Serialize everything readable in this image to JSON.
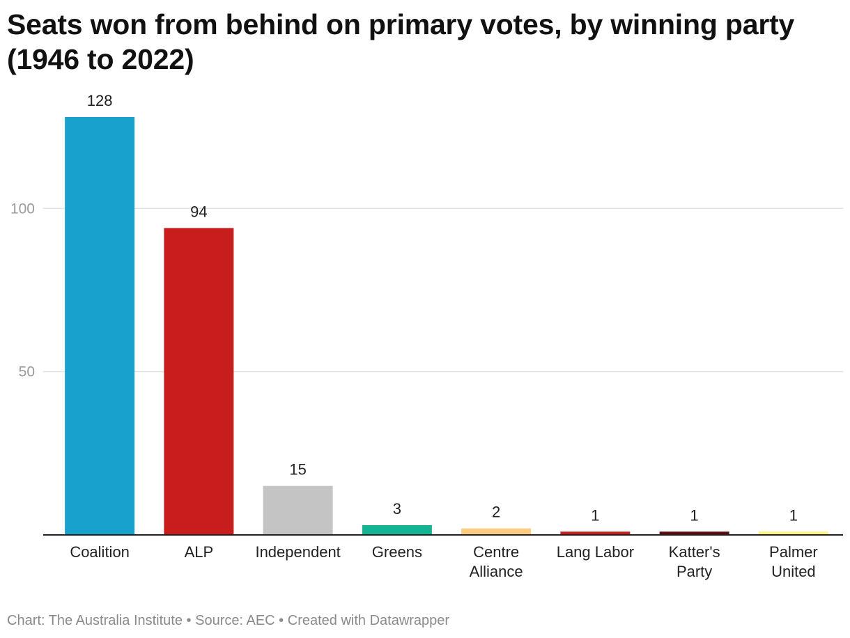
{
  "chart_data": {
    "type": "bar",
    "title": "Seats won from behind on primary votes, by winning party (1946 to 2022)",
    "categories": [
      "Coalition",
      "ALP",
      "Independent",
      "Greens",
      "Centre Alliance",
      "Lang Labor",
      "Katter's Party",
      "Palmer United"
    ],
    "category_lines": [
      [
        "Coalition"
      ],
      [
        "ALP"
      ],
      [
        "Independent"
      ],
      [
        "Greens"
      ],
      [
        "Centre",
        "Alliance"
      ],
      [
        "Lang Labor"
      ],
      [
        "Katter's",
        "Party"
      ],
      [
        "Palmer",
        "United"
      ]
    ],
    "values": [
      128,
      94,
      15,
      3,
      2,
      1,
      1,
      1
    ],
    "value_labels": [
      "128",
      "94",
      "15",
      "3",
      "2",
      "1",
      "1",
      "1"
    ],
    "colors": [
      "#18a1cd",
      "#c71e1d",
      "#c4c4c4",
      "#15b392",
      "#fecc80",
      "#c71e1d",
      "#5c0a0a",
      "#fdf280"
    ],
    "ylim": [
      0,
      128
    ],
    "yticks": [
      50,
      100
    ],
    "ytick_labels": [
      "50",
      "100"
    ],
    "grid": true,
    "legend": "none",
    "xlabel": "",
    "ylabel": ""
  },
  "footer": {
    "chart_credit": "Chart: The Australia Institute",
    "separator1": " • ",
    "source": "Source: AEC",
    "separator2": " • ",
    "tool": "Created with Datawrapper"
  }
}
